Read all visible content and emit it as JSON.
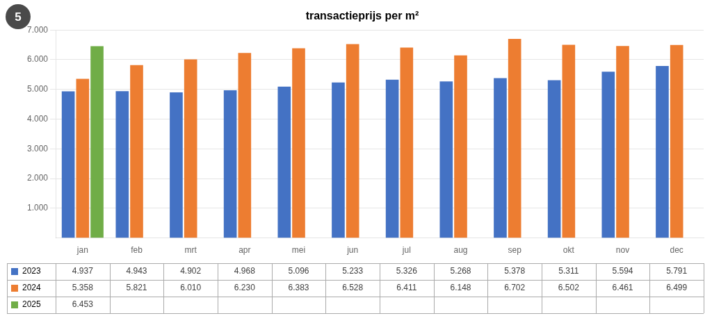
{
  "chart_data": {
    "type": "bar",
    "title": "transactieprijs per m²",
    "annotations": [
      {
        "text": "5"
      }
    ],
    "categories": [
      "jan",
      "feb",
      "mrt",
      "apr",
      "mei",
      "jun",
      "jul",
      "aug",
      "sep",
      "okt",
      "nov",
      "dec"
    ],
    "series": [
      {
        "name": "2023",
        "color": "#4472C4",
        "values": [
          4937,
          4943,
          4902,
          4968,
          5096,
          5233,
          5326,
          5268,
          5378,
          5311,
          5594,
          5791
        ],
        "value_labels": [
          "4.937",
          "4.943",
          "4.902",
          "4.968",
          "5.096",
          "5.233",
          "5.326",
          "5.268",
          "5.378",
          "5.311",
          "5.594",
          "5.791"
        ]
      },
      {
        "name": "2024",
        "color": "#ED7D31",
        "values": [
          5358,
          5821,
          6010,
          6230,
          6383,
          6528,
          6411,
          6148,
          6702,
          6502,
          6461,
          6499
        ],
        "value_labels": [
          "5.358",
          "5.821",
          "6.010",
          "6.230",
          "6.383",
          "6.528",
          "6.411",
          "6.148",
          "6.702",
          "6.502",
          "6.461",
          "6.499"
        ]
      },
      {
        "name": "2025",
        "color": "#70AD47",
        "values": [
          6453,
          null,
          null,
          null,
          null,
          null,
          null,
          null,
          null,
          null,
          null,
          null
        ],
        "value_labels": [
          "6.453",
          null,
          null,
          null,
          null,
          null,
          null,
          null,
          null,
          null,
          null,
          null
        ]
      }
    ],
    "ylim": [
      0,
      7000
    ],
    "yticks": [
      {
        "value": 1000,
        "label": "1.000"
      },
      {
        "value": 2000,
        "label": "2.000"
      },
      {
        "value": 3000,
        "label": "3.000"
      },
      {
        "value": 4000,
        "label": "4.000"
      },
      {
        "value": 5000,
        "label": "5.000"
      },
      {
        "value": 6000,
        "label": "6.000"
      },
      {
        "value": 7000,
        "label": "7.000"
      }
    ],
    "grid": true
  }
}
